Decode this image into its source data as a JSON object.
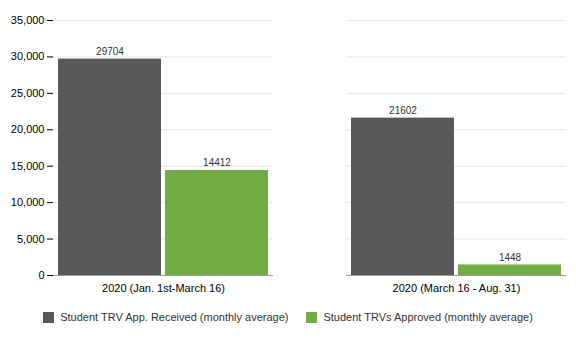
{
  "chart_data": {
    "type": "bar",
    "categories": [
      "2020 (Jan. 1st-March 16)",
      "2020 (March 16 - Aug. 31)"
    ],
    "series": [
      {
        "name": "Student TRV App. Received (monthly average)",
        "color": "#595959",
        "values": [
          29704,
          21602
        ]
      },
      {
        "name": "Student TRVs Approved (monthly average)",
        "color": "#70ad47",
        "values": [
          14412,
          1448
        ]
      }
    ],
    "ylim": [
      0,
      35000
    ],
    "yticks": [
      0,
      {
        "value": 5000,
        "label": "5,000"
      },
      {
        "value": 10000,
        "label": "10,000"
      },
      {
        "value": 15000,
        "label": "15,000"
      },
      {
        "value": 20000,
        "label": "20,000"
      },
      {
        "value": 25000,
        "label": "25,000"
      },
      {
        "value": 30000,
        "label": "30,000"
      },
      {
        "value": 35000,
        "label": "35,000"
      }
    ],
    "grid": true,
    "legend": "bottom",
    "data_labels": true
  }
}
